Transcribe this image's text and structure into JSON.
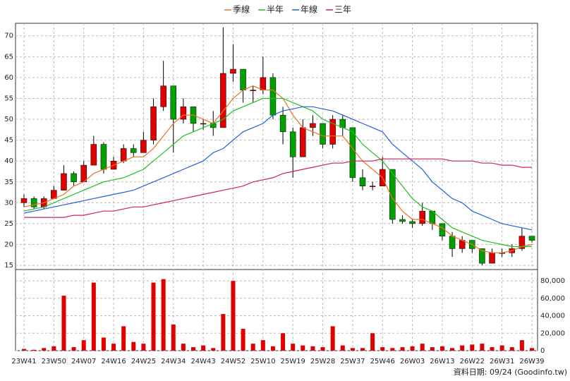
{
  "chart_data": {
    "type": "candlestick",
    "categories": [
      "23W41",
      null,
      null,
      "23W50",
      null,
      null,
      "24W07",
      null,
      null,
      "24W16",
      null,
      null,
      "24W25",
      null,
      null,
      "24W34",
      null,
      null,
      "24W43",
      null,
      null,
      "24W52",
      null,
      null,
      "25W10",
      null,
      null,
      "25W19",
      null,
      null,
      "25W28",
      null,
      null,
      "25W37",
      null,
      null,
      "25W46",
      null,
      null,
      "26W03",
      null,
      null,
      "26W13",
      null,
      null,
      "26W22",
      null,
      null,
      "26W31",
      null,
      null,
      "26W39"
    ],
    "open": [
      30,
      31,
      29,
      31,
      33,
      37,
      35,
      39,
      44,
      38,
      40,
      43,
      42,
      45,
      53,
      58,
      50,
      53,
      49,
      49,
      48,
      61,
      62,
      57,
      57,
      60,
      51,
      47,
      41,
      48,
      49,
      44,
      50,
      48,
      36,
      34,
      34,
      38,
      26,
      25.5,
      25,
      28,
      25,
      22,
      19,
      21,
      19,
      15.5,
      18,
      18,
      19,
      22
    ],
    "high": [
      32,
      31.5,
      31.5,
      34,
      39,
      37.5,
      40,
      46,
      44.5,
      41,
      44,
      44,
      47,
      55,
      64,
      58,
      55,
      53,
      50,
      52,
      72,
      68,
      62,
      58,
      65,
      61,
      53,
      48,
      50,
      51,
      49,
      51,
      51,
      48,
      38,
      35,
      41,
      38,
      27,
      26,
      30,
      28,
      25,
      23,
      22,
      21,
      19,
      19,
      19,
      20,
      24,
      22
    ],
    "low": [
      29,
      28.5,
      28.5,
      31,
      33,
      34,
      35,
      39,
      37,
      38,
      39.5,
      41,
      42,
      44,
      52,
      42,
      49,
      47,
      47.5,
      46,
      48,
      59,
      54,
      54,
      56,
      50,
      44,
      36,
      41,
      46,
      43,
      43,
      46,
      35,
      33,
      33,
      34,
      25,
      25,
      24,
      24.5,
      23.5,
      21,
      17,
      18,
      18,
      15,
      15.5,
      17,
      17,
      18.5,
      20.5
    ],
    "close": [
      31,
      29,
      31,
      33,
      37,
      35,
      39,
      44,
      38,
      40,
      43,
      42,
      45,
      53,
      58,
      50,
      53,
      49,
      49,
      48,
      61,
      62,
      57,
      57,
      60,
      51,
      47,
      41,
      48,
      49,
      44,
      50,
      48,
      36,
      34,
      34,
      38,
      26,
      25.5,
      25,
      28,
      25,
      22,
      19,
      21,
      19,
      15.5,
      18,
      18,
      19,
      22,
      21
    ],
    "up_color": "#e00000",
    "down_color": "#00a000",
    "series": [
      {
        "name": "季線",
        "color": "#f07020",
        "values": [
          29,
          29.5,
          30,
          31,
          32,
          34,
          35,
          37,
          38,
          39,
          40,
          41,
          41,
          43,
          46,
          49,
          51,
          51,
          50,
          49,
          52,
          55,
          57,
          58,
          57,
          57,
          55,
          51,
          48,
          47,
          46,
          46,
          46,
          43,
          40,
          38,
          36,
          31,
          28,
          26,
          26,
          25,
          24,
          22,
          21,
          20,
          18.5,
          18,
          18,
          18.5,
          19.5,
          20
        ]
      },
      {
        "name": "半年",
        "color": "#20c020",
        "values": [
          28,
          28.5,
          29,
          30,
          31,
          32,
          33,
          34,
          35,
          35.5,
          36,
          37,
          38,
          40,
          42,
          44,
          46,
          47,
          48,
          49,
          50,
          52,
          53,
          54,
          55,
          55,
          55,
          54,
          53,
          52,
          50,
          49,
          48,
          47,
          44,
          42,
          40,
          37,
          34,
          31,
          29,
          28,
          26,
          24,
          23,
          22,
          21,
          20.5,
          20,
          19.5,
          19.5,
          19.5
        ]
      },
      {
        "name": "年線",
        "color": "#2060e0",
        "values": [
          27.5,
          28,
          28.5,
          29,
          29.5,
          30,
          30.5,
          31,
          31.5,
          32,
          32.5,
          33,
          34,
          35,
          36,
          37,
          38,
          39,
          40,
          42,
          43,
          45,
          47,
          48,
          49,
          51,
          52,
          52.5,
          53,
          53,
          52.5,
          52,
          51,
          50,
          49,
          48,
          47,
          44,
          42,
          40,
          38,
          35,
          33,
          31,
          30,
          28,
          27,
          26,
          25,
          24.5,
          24,
          23.5
        ]
      },
      {
        "name": "三年",
        "color": "#d02060",
        "values": [
          26.5,
          26.5,
          26.5,
          26.5,
          26.5,
          27,
          27,
          27.5,
          28,
          28,
          28.5,
          29,
          29,
          29.5,
          30,
          30.5,
          31,
          31.5,
          32,
          32.5,
          33,
          33.5,
          34,
          35,
          35.5,
          36,
          37,
          37.5,
          38,
          38.5,
          39,
          39.5,
          39.5,
          40,
          40,
          40,
          40.5,
          40.5,
          40.5,
          40.5,
          40.5,
          40.5,
          40.5,
          40,
          40,
          40,
          39.5,
          39.5,
          39,
          39,
          38.5,
          38.5
        ]
      }
    ],
    "ylim": [
      14,
      73
    ],
    "yticks": [
      15,
      20,
      25,
      30,
      35,
      40,
      45,
      50,
      55,
      60,
      65,
      70
    ],
    "volume": [
      2000,
      1000,
      3000,
      5000,
      63000,
      4000,
      12000,
      78000,
      15000,
      8000,
      28000,
      10000,
      8000,
      78000,
      82000,
      30000,
      8000,
      4000,
      6000,
      3000,
      42000,
      80000,
      25000,
      8000,
      12000,
      5000,
      20000,
      8000,
      6000,
      5000,
      4000,
      28000,
      6000,
      3000,
      3000,
      20000,
      4000,
      3000,
      4000,
      5000,
      8000,
      4000,
      5000,
      3000,
      6000,
      7000,
      8000,
      4000,
      6000,
      4000,
      12000,
      3000
    ],
    "volume_color": "#e00000",
    "y2lim": [
      0,
      93000
    ],
    "y2ticks": [
      0,
      {
        "value": 20000,
        "label": "20,000"
      },
      {
        "value": 40000,
        "label": "40,000"
      },
      {
        "value": 60000,
        "label": "60,000"
      },
      {
        "value": 80000,
        "label": "80,000"
      }
    ],
    "grid": true,
    "source_note": "資料日期: 09/24 (Goodinfo.tw)"
  }
}
